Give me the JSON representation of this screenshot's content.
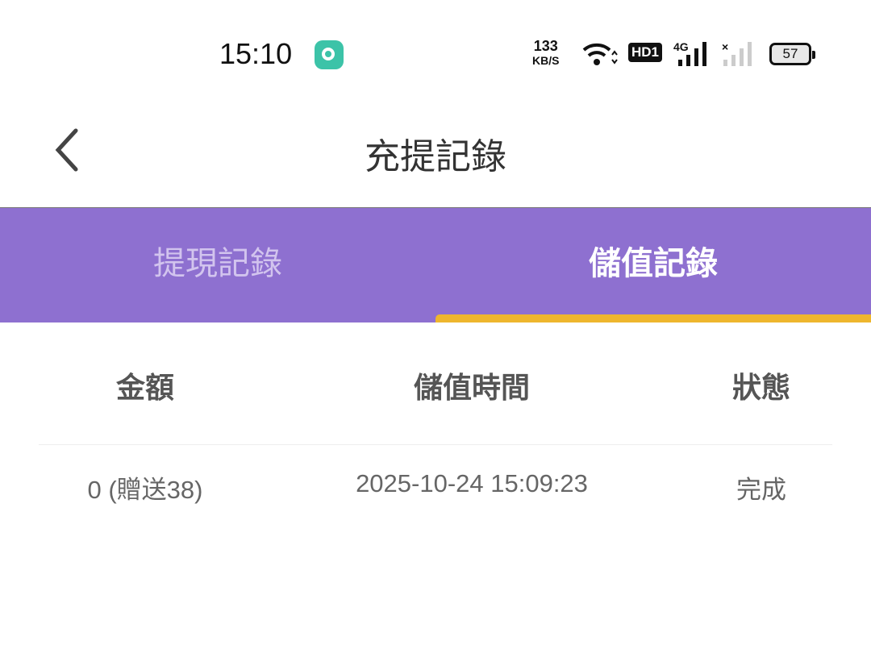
{
  "status_bar": {
    "time": "15:10",
    "net_speed": "133",
    "net_speed_unit": "KB/S",
    "hd": "HD1",
    "network": "4G",
    "battery": "57",
    "app_icon": "music-app-icon"
  },
  "header": {
    "title": "充提記錄",
    "back_icon": "chevron-left-icon"
  },
  "tabs": [
    {
      "label": "提現記錄",
      "active": false
    },
    {
      "label": "儲值記錄",
      "active": true
    }
  ],
  "colors": {
    "tab_bar": "#8e70d0",
    "indicator": "#eeb62e"
  },
  "table": {
    "columns": [
      "金額",
      "儲值時間",
      "狀態"
    ],
    "rows": [
      [
        "0 (贈送38)",
        "2025-10-24 15:09:23",
        "完成"
      ]
    ]
  }
}
